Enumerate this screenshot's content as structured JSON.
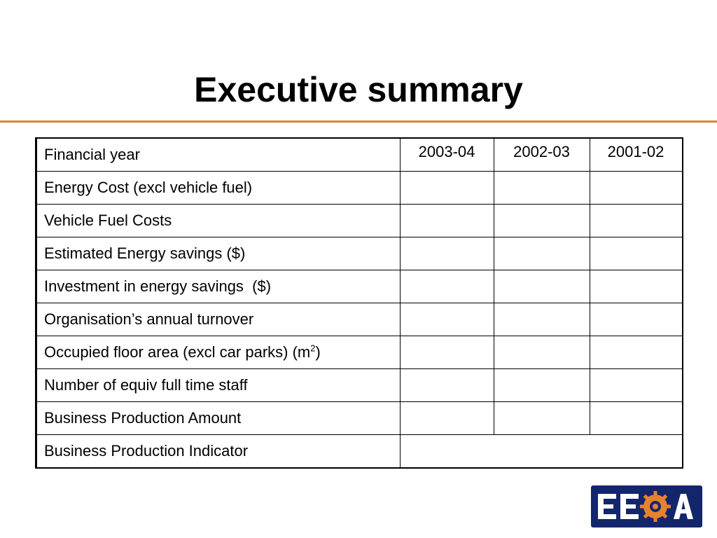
{
  "slide": {
    "title": "Executive summary"
  },
  "table": {
    "header": {
      "label": "Financial year",
      "years": [
        "2003-04",
        "2002-03",
        "2001-02"
      ]
    },
    "rows": [
      {
        "label": "Energy Cost (excl vehicle fuel)"
      },
      {
        "label": "Vehicle Fuel Costs"
      },
      {
        "label": "Estimated Energy savings ($)"
      },
      {
        "label": "Investment in energy savings  ($)"
      },
      {
        "label": "Organisation’s annual turnover"
      },
      {
        "label_main": "Occupied floor area (excl car parks) (m",
        "label_sup": "2",
        "label_end": ")"
      },
      {
        "label": "Number of equiv full time staff"
      },
      {
        "label": "Business Production Amount"
      },
      {
        "label": "Business Production Indicator"
      }
    ]
  },
  "logo": {
    "text": "EECA",
    "icon": "sun-gear-icon",
    "colors": {
      "background": "#14266b",
      "text": "#ffffff",
      "sun": "#e5822e"
    }
  },
  "colors": {
    "accent_rule": "#e5822e"
  }
}
